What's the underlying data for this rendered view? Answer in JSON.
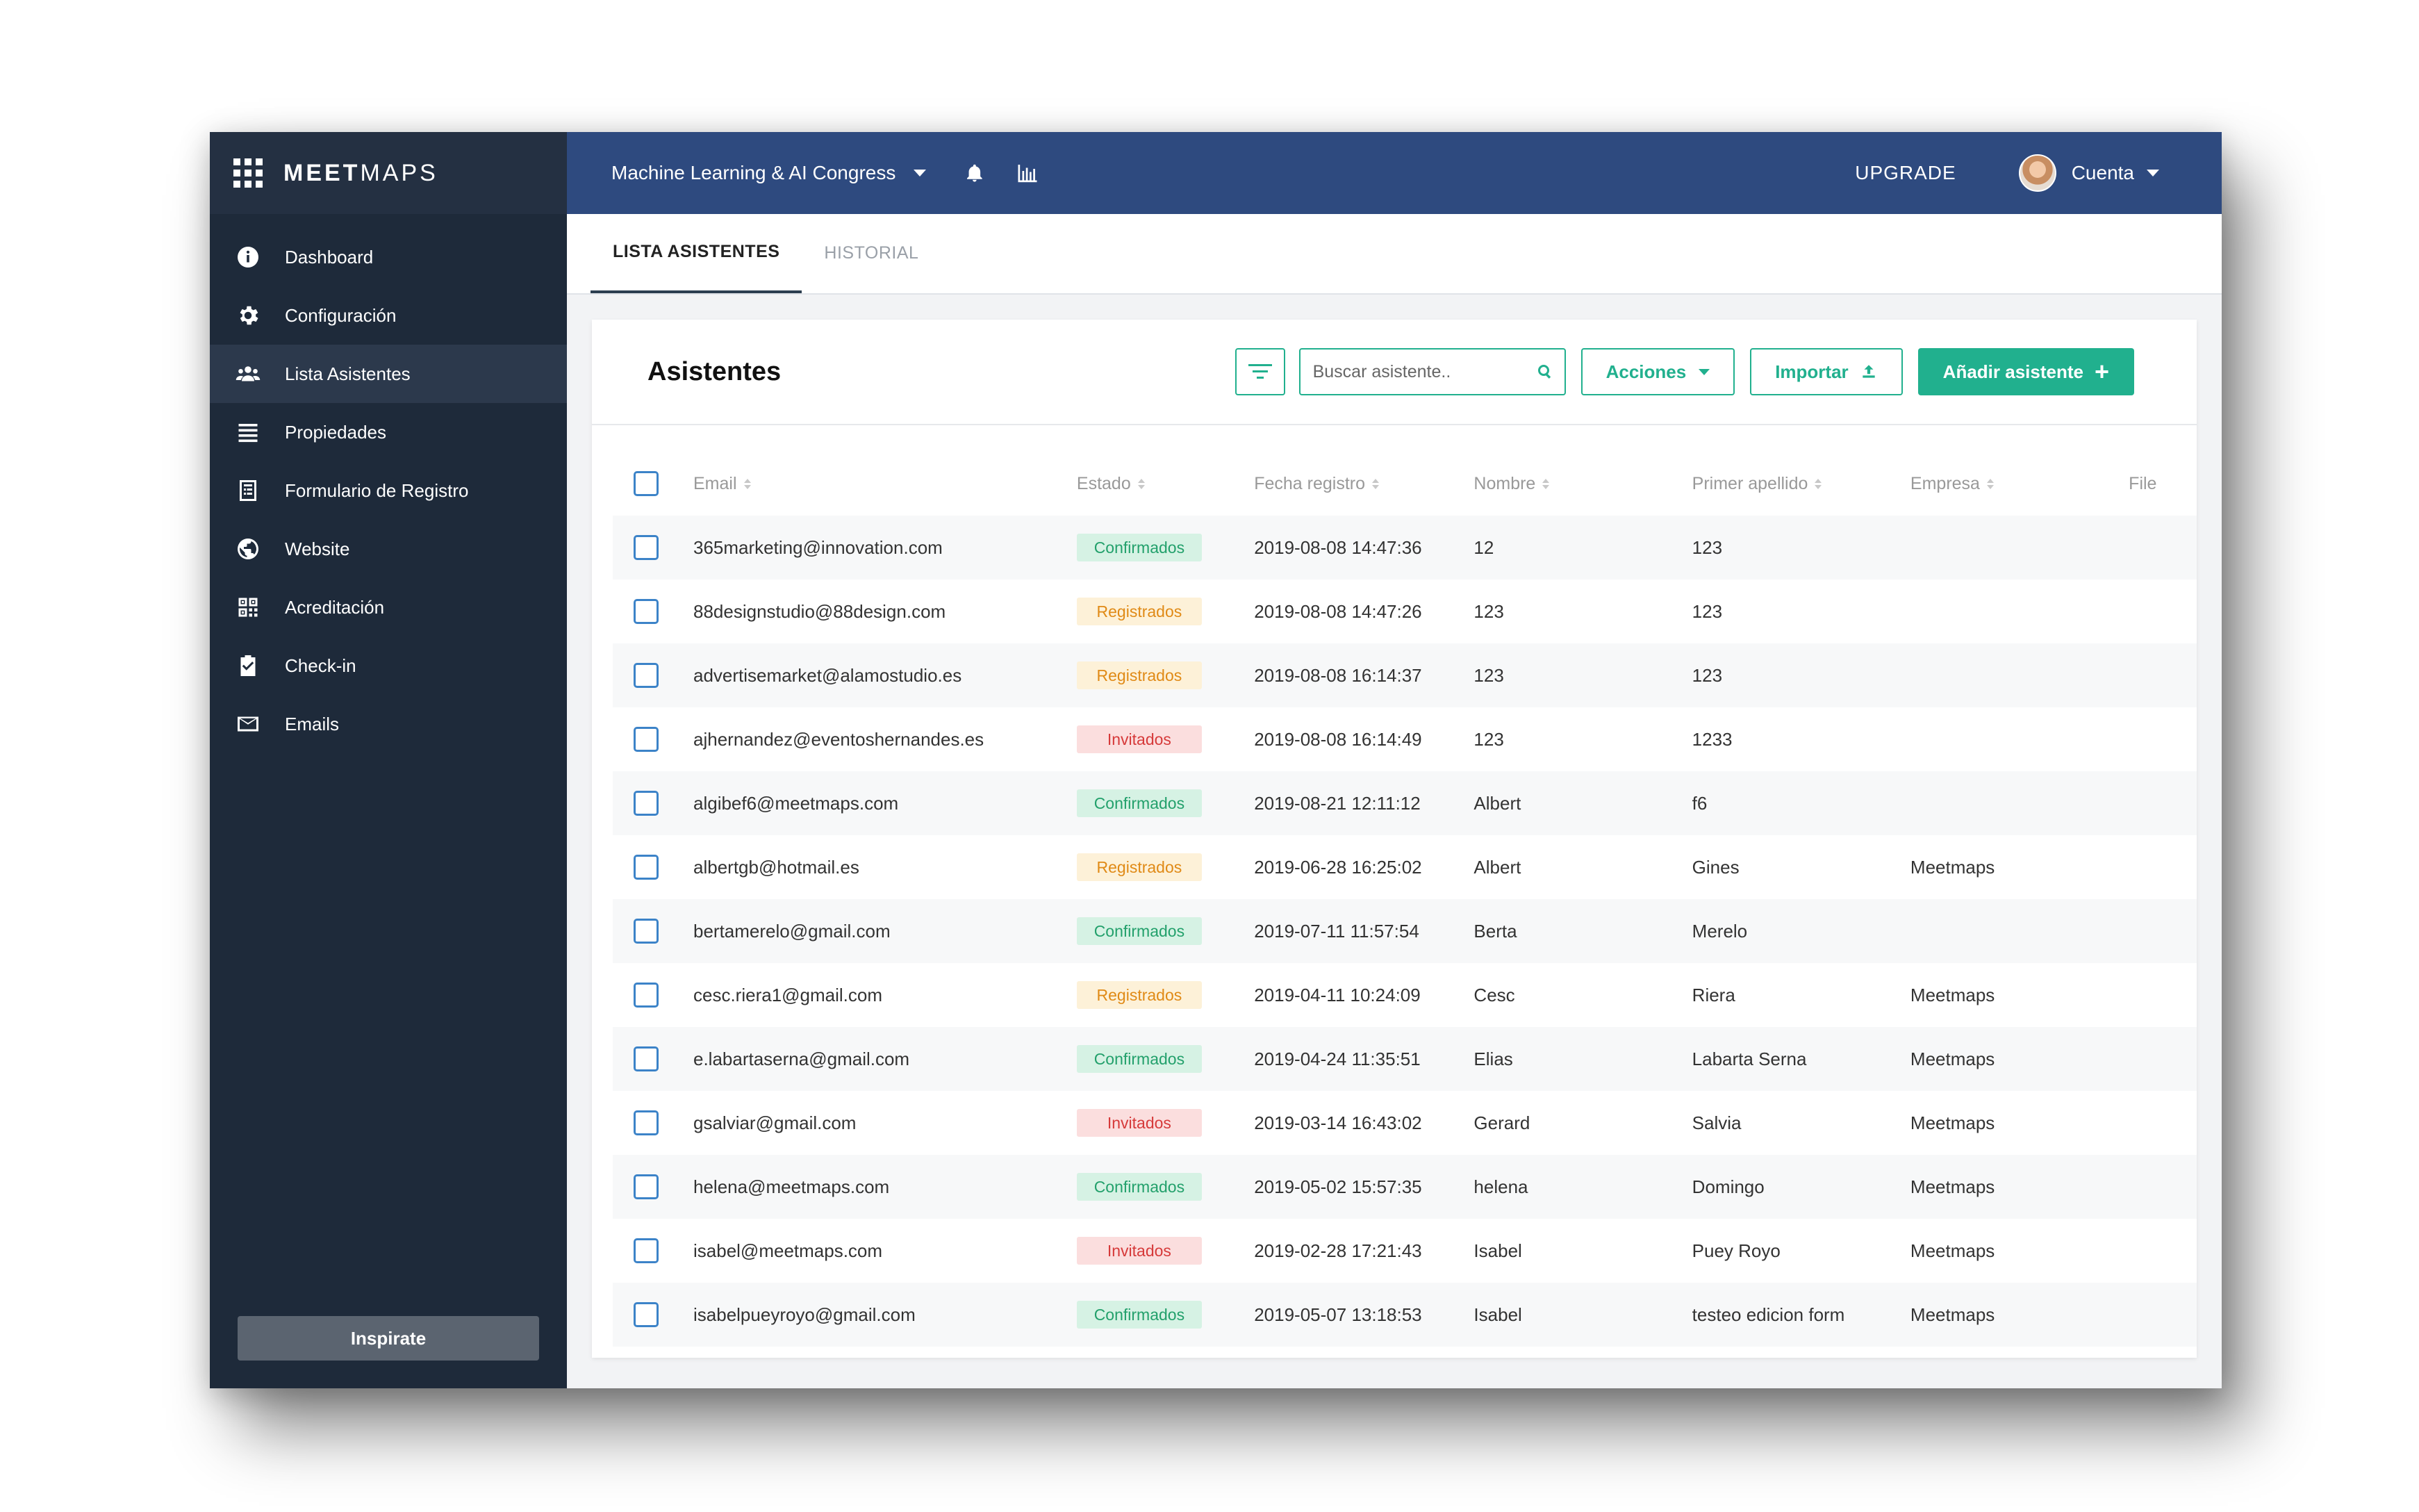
{
  "brand": {
    "logo_strong": "MEET",
    "logo_light": "MAPS"
  },
  "sidebar": {
    "items": [
      {
        "label": "Dashboard",
        "icon": "info-icon"
      },
      {
        "label": "Configuración",
        "icon": "gear-icon"
      },
      {
        "label": "Lista Asistentes",
        "icon": "users-icon"
      },
      {
        "label": "Propiedades",
        "icon": "list-icon"
      },
      {
        "label": "Formulario de Registro",
        "icon": "form-icon"
      },
      {
        "label": "Website",
        "icon": "globe-icon"
      },
      {
        "label": "Acreditación",
        "icon": "qr-icon"
      },
      {
        "label": "Check-in",
        "icon": "clipboard-check-icon"
      },
      {
        "label": "Emails",
        "icon": "envelope-icon"
      }
    ],
    "active_index": 2,
    "footer_button": "Inspirate"
  },
  "topbar": {
    "event_name": "Machine Learning & AI Congress",
    "upgrade_label": "UPGRADE",
    "account_label": "Cuenta"
  },
  "tabs": [
    {
      "label": "LISTA ASISTENTES",
      "active": true
    },
    {
      "label": "HISTORIAL",
      "active": false
    }
  ],
  "card": {
    "title": "Asistentes",
    "search_placeholder": "Buscar asistente..",
    "actions_label": "Acciones",
    "import_label": "Importar",
    "add_label": "Añadir asistente"
  },
  "table": {
    "columns": {
      "email": "Email",
      "estado": "Estado",
      "fecha": "Fecha registro",
      "nombre": "Nombre",
      "apellido": "Primer apellido",
      "empresa": "Empresa",
      "file": "File"
    },
    "rows": [
      {
        "email": "365marketing@innovation.com",
        "estado": "Confirmados",
        "status": "confirmados",
        "fecha": "2019-08-08 14:47:36",
        "nombre": "12",
        "apellido": "123",
        "empresa": ""
      },
      {
        "email": "88designstudio@88design.com",
        "estado": "Registrados",
        "status": "registrados",
        "fecha": "2019-08-08 14:47:26",
        "nombre": "123",
        "apellido": "123",
        "empresa": ""
      },
      {
        "email": "advertisemarket@alamostudio.es",
        "estado": "Registrados",
        "status": "registrados",
        "fecha": "2019-08-08 16:14:37",
        "nombre": "123",
        "apellido": "123",
        "empresa": ""
      },
      {
        "email": "ajhernandez@eventoshernandes.es",
        "estado": "Invitados",
        "status": "invitados",
        "fecha": "2019-08-08 16:14:49",
        "nombre": "123",
        "apellido": "1233",
        "empresa": ""
      },
      {
        "email": "algibef6@meetmaps.com",
        "estado": "Confirmados",
        "status": "confirmados",
        "fecha": "2019-08-21 12:11:12",
        "nombre": "Albert",
        "apellido": "f6",
        "empresa": ""
      },
      {
        "email": "albertgb@hotmail.es",
        "estado": "Registrados",
        "status": "registrados",
        "fecha": "2019-06-28 16:25:02",
        "nombre": "Albert",
        "apellido": "Gines",
        "empresa": "Meetmaps"
      },
      {
        "email": "bertamerelo@gmail.com",
        "estado": "Confirmados",
        "status": "confirmados",
        "fecha": "2019-07-11 11:57:54",
        "nombre": "Berta",
        "apellido": "Merelo",
        "empresa": ""
      },
      {
        "email": "cesc.riera1@gmail.com",
        "estado": "Registrados",
        "status": "registrados",
        "fecha": "2019-04-11 10:24:09",
        "nombre": "Cesc",
        "apellido": "Riera",
        "empresa": "Meetmaps"
      },
      {
        "email": "e.labartaserna@gmail.com",
        "estado": "Confirmados",
        "status": "confirmados",
        "fecha": "2019-04-24 11:35:51",
        "nombre": "Elias",
        "apellido": "Labarta Serna",
        "empresa": "Meetmaps"
      },
      {
        "email": "gsalviar@gmail.com",
        "estado": "Invitados",
        "status": "invitados",
        "fecha": "2019-03-14 16:43:02",
        "nombre": "Gerard",
        "apellido": "Salvia",
        "empresa": "Meetmaps"
      },
      {
        "email": "helena@meetmaps.com",
        "estado": "Confirmados",
        "status": "confirmados",
        "fecha": "2019-05-02 15:57:35",
        "nombre": "helena",
        "apellido": "Domingo",
        "empresa": "Meetmaps"
      },
      {
        "email": "isabel@meetmaps.com",
        "estado": "Invitados",
        "status": "invitados",
        "fecha": "2019-02-28 17:21:43",
        "nombre": "Isabel",
        "apellido": "Puey Royo",
        "empresa": "Meetmaps"
      },
      {
        "email": "isabelpueyroyo@gmail.com",
        "estado": "Confirmados",
        "status": "confirmados",
        "fecha": "2019-05-07 13:18:53",
        "nombre": "Isabel",
        "apellido": "testeo edicion form",
        "empresa": "Meetmaps"
      }
    ]
  },
  "colors": {
    "sidebar_bg": "#1e2a3a",
    "topbar_bg": "#2e4a7f",
    "accent": "#21b08e",
    "checkbox": "#3c83c8"
  }
}
